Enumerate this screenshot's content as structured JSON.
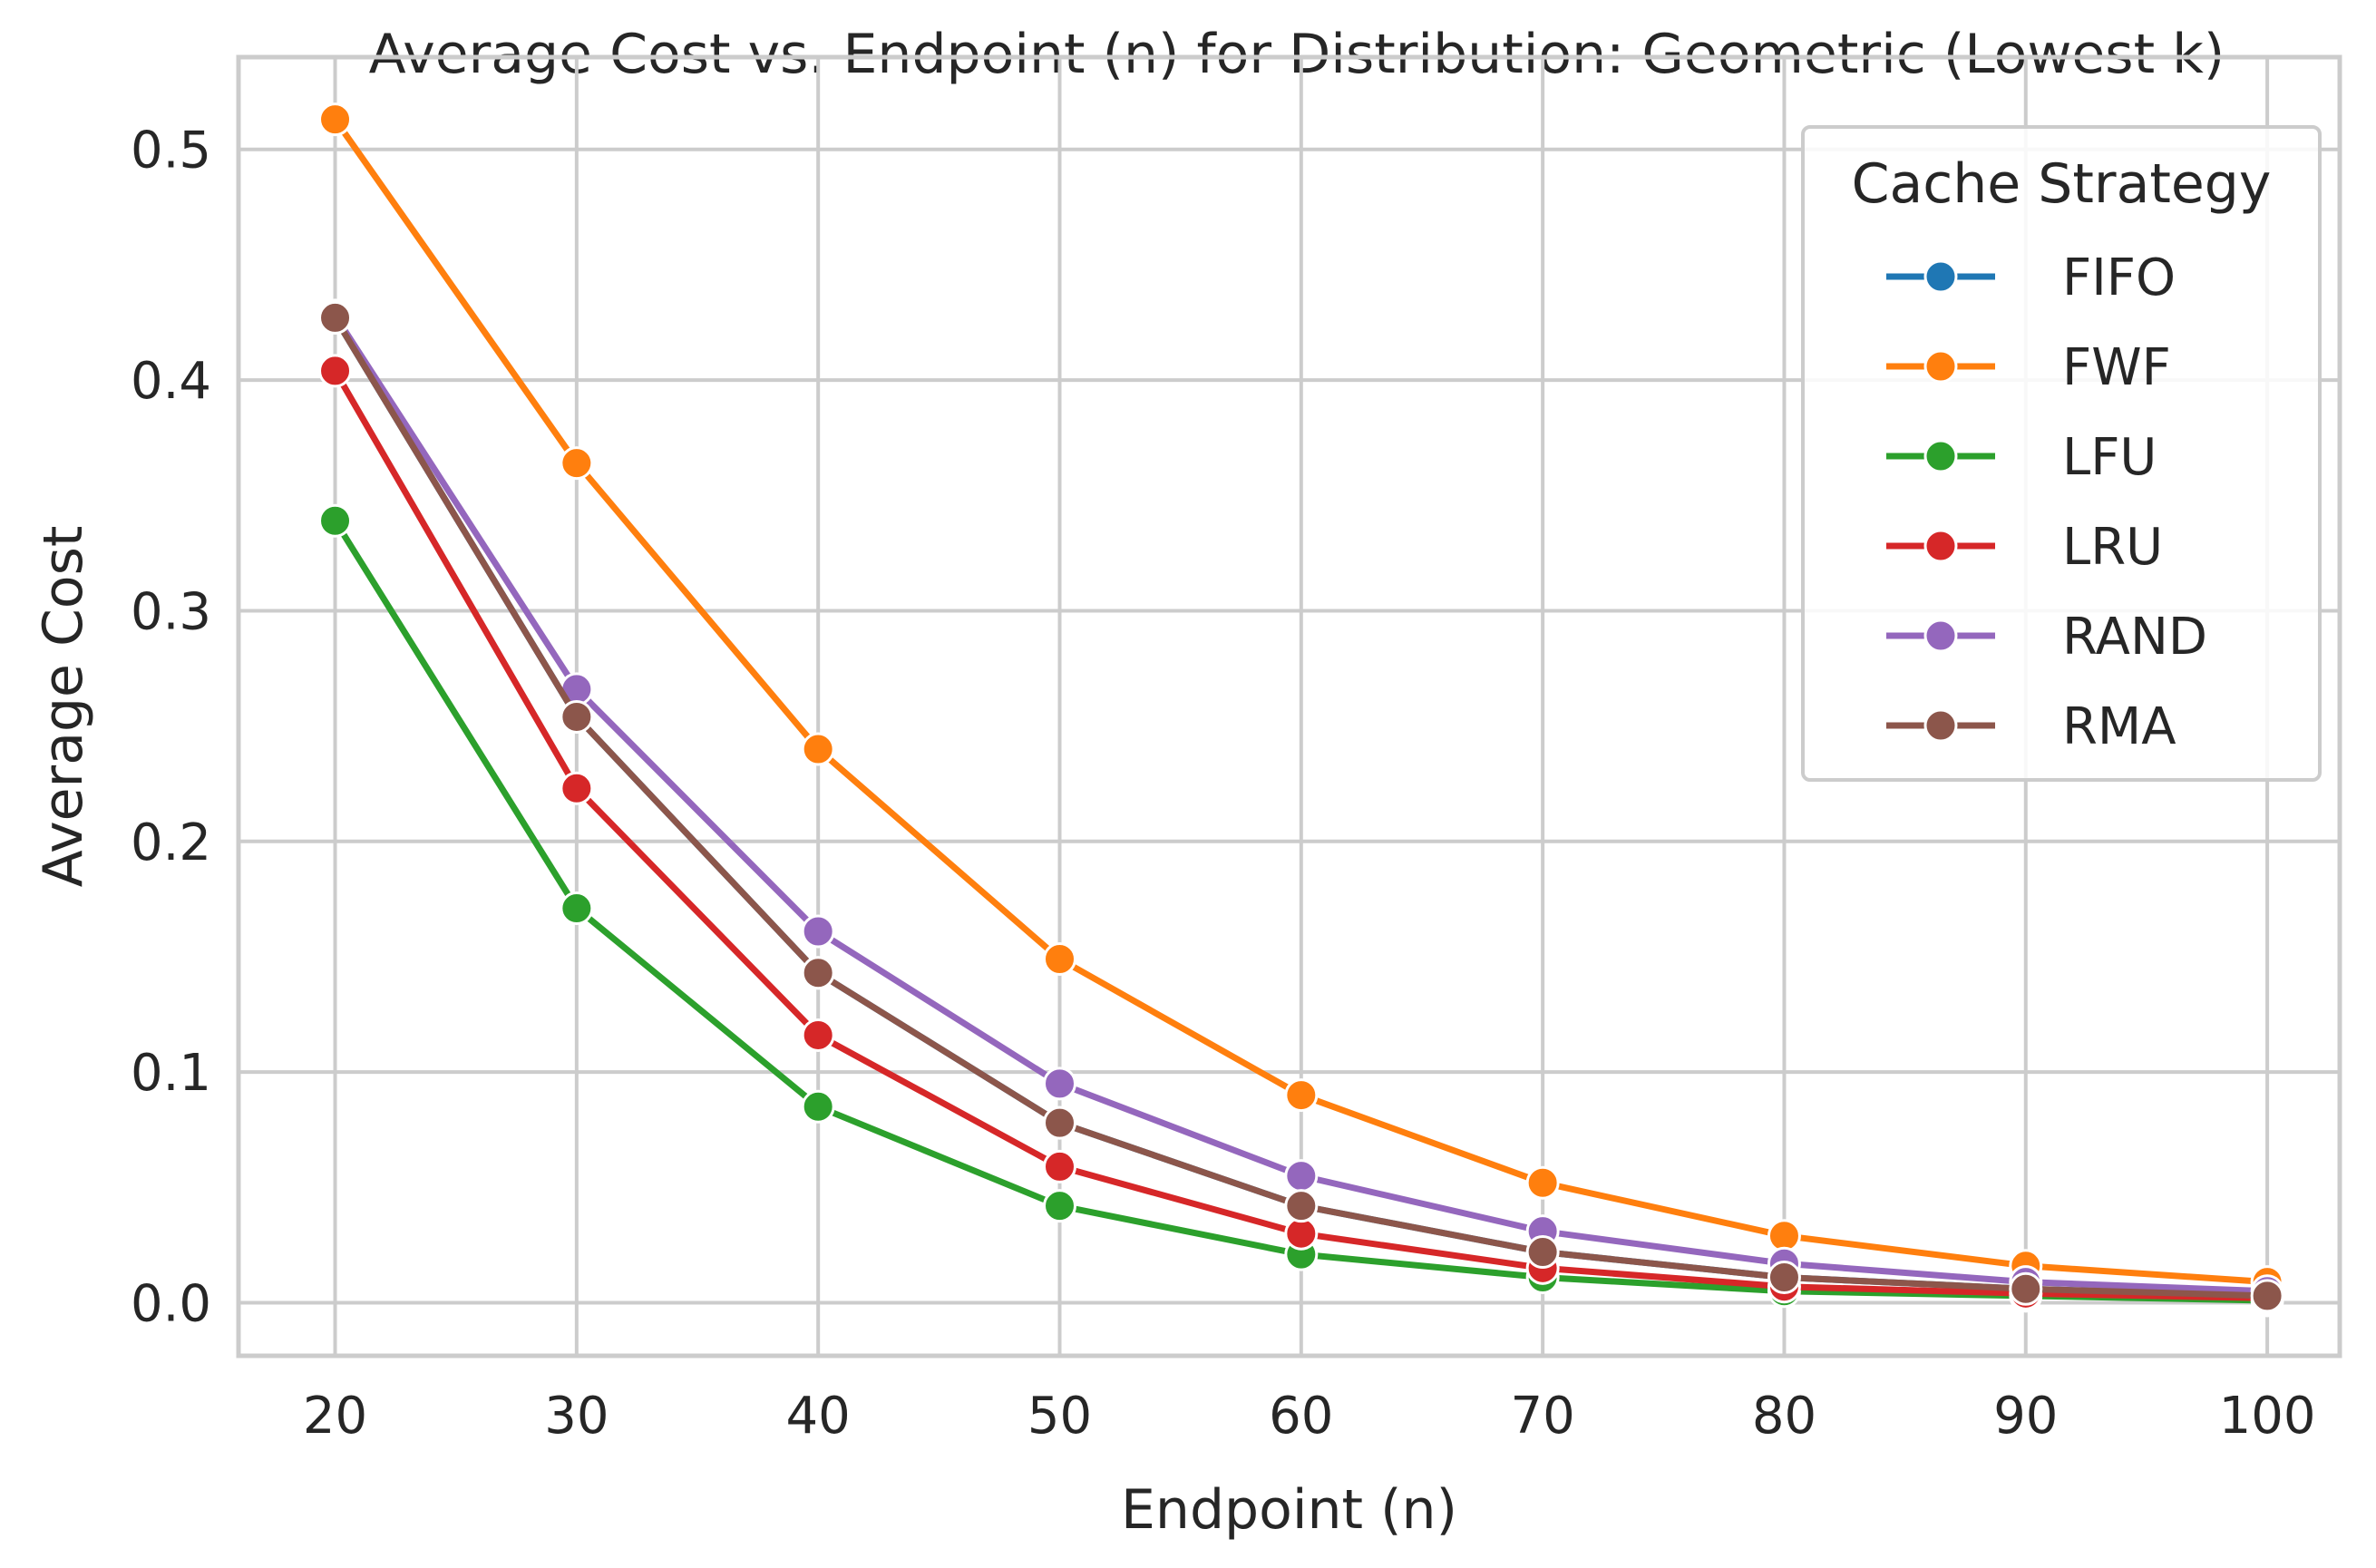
{
  "chart_data": {
    "type": "line",
    "title": "Average Cost vs. Endpoint (n) for Distribution: Geometric (Lowest k)",
    "xlabel": "Endpoint (n)",
    "ylabel": "Average Cost",
    "x": [
      20,
      30,
      40,
      50,
      60,
      70,
      80,
      90,
      100
    ],
    "x_ticks": [
      "20",
      "30",
      "40",
      "50",
      "60",
      "70",
      "80",
      "90",
      "100"
    ],
    "y_ticks": [
      "0.0",
      "0.1",
      "0.2",
      "0.3",
      "0.4",
      "0.5"
    ],
    "xlim": [
      16,
      103
    ],
    "ylim": [
      -0.023,
      0.54
    ],
    "grid": true,
    "legend": {
      "title": "Cache Strategy",
      "location": "upper right"
    },
    "series": [
      {
        "name": "FIFO",
        "color": "#1f77b4",
        "values": [
          0.427,
          0.254,
          0.143,
          0.078,
          0.042,
          0.022,
          0.011,
          0.006,
          0.003
        ]
      },
      {
        "name": "FWF",
        "color": "#ff7f0e",
        "values": [
          0.513,
          0.364,
          0.24,
          0.149,
          0.09,
          0.052,
          0.029,
          0.016,
          0.009
        ]
      },
      {
        "name": "LFU",
        "color": "#2ca02c",
        "values": [
          0.339,
          0.171,
          0.085,
          0.042,
          0.021,
          0.011,
          0.005,
          0.003,
          0.001
        ]
      },
      {
        "name": "LRU",
        "color": "#d62728",
        "values": [
          0.404,
          0.223,
          0.116,
          0.059,
          0.03,
          0.015,
          0.007,
          0.004,
          0.002
        ]
      },
      {
        "name": "RAND",
        "color": "#9467bd",
        "values": [
          0.428,
          0.266,
          0.161,
          0.095,
          0.055,
          0.031,
          0.017,
          0.009,
          0.005
        ]
      },
      {
        "name": "RMA",
        "color": "#8c564b",
        "values": [
          0.427,
          0.254,
          0.143,
          0.078,
          0.042,
          0.022,
          0.011,
          0.006,
          0.003
        ]
      }
    ]
  }
}
